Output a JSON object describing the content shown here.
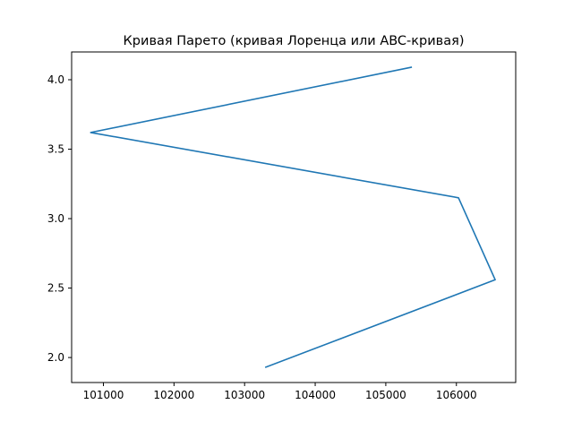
{
  "chart_data": {
    "type": "line",
    "title": "Кривая Парето (кривая Лоренца или ABC-кривая)",
    "xlabel": "",
    "ylabel": "",
    "series": [
      {
        "color": "#1f77b4",
        "x": [
          103300,
          106550,
          106030,
          100820,
          105360
        ],
        "y": [
          1.93,
          2.56,
          3.15,
          3.62,
          4.09
        ]
      }
    ],
    "xlim": [
      100550,
      106840
    ],
    "ylim": [
      1.82,
      4.2
    ],
    "xticks": [
      101000,
      102000,
      103000,
      104000,
      105000,
      106000
    ],
    "xtick_labels": [
      "101000",
      "102000",
      "103000",
      "104000",
      "105000",
      "106000"
    ],
    "yticks": [
      2.0,
      2.5,
      3.0,
      3.5,
      4.0
    ],
    "ytick_labels": [
      "2.0",
      "2.5",
      "3.0",
      "3.5",
      "4.0"
    ],
    "grid": false,
    "legend": "none"
  }
}
